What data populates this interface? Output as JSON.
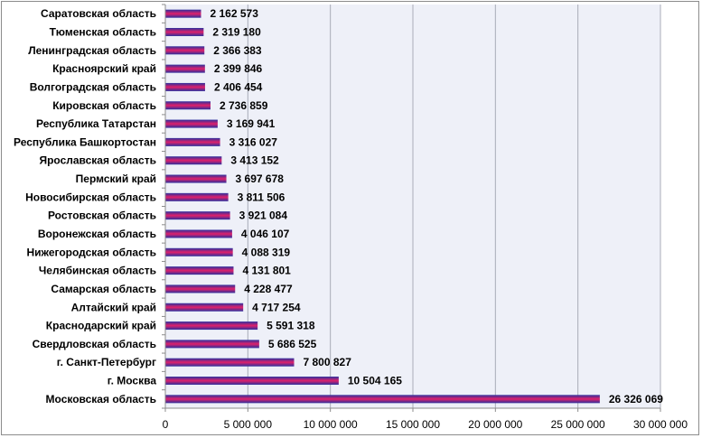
{
  "chart_data": {
    "type": "bar",
    "orientation": "horizontal",
    "categories": [
      "Саратовская область",
      "Тюменская область",
      "Ленинградская область",
      "Красноярский край",
      "Волгоградская область",
      "Кировская область",
      "Республика Татарстан",
      "Республика Башкортостан",
      "Ярославская область",
      "Пермский край",
      "Новосибирская область",
      "Ростовская область",
      "Воронежская область",
      "Нижегородская область",
      "Челябинская область",
      "Самарская область",
      "Алтайский край",
      "Краснодарский край",
      "Свердловская область",
      "г. Санкт-Петербург",
      "г. Москва",
      "Московская область"
    ],
    "values": [
      2162573,
      2319180,
      2366383,
      2399846,
      2406454,
      2736859,
      3169941,
      3316027,
      3413152,
      3697678,
      3811506,
      3921084,
      4046107,
      4088319,
      4131801,
      4228477,
      4717254,
      5591318,
      5686525,
      7800827,
      10504165,
      26326069
    ],
    "value_labels": [
      "2 162 573",
      "2 319 180",
      "2 366 383",
      "2 399 846",
      "2 406 454",
      "2 736 859",
      "3 169 941",
      "3 316 027",
      "3 413 152",
      "3 697 678",
      "3 811 506",
      "3 921 084",
      "4 046 107",
      "4 088 319",
      "4 131 801",
      "4 228 477",
      "4 717 254",
      "5 591 318",
      "5 686 525",
      "7 800 827",
      "10 504 165",
      "26 326 069"
    ],
    "x_ticks": [
      0,
      5000000,
      10000000,
      15000000,
      20000000,
      25000000,
      30000000
    ],
    "x_tick_labels": [
      "0",
      "5 000 000",
      "10 000 000",
      "15 000 000",
      "20 000 000",
      "25 000 000",
      "30 000 000"
    ],
    "xlim": [
      0,
      30000000
    ],
    "grid": true,
    "legend": "none",
    "colors": {
      "bar_top": "#2b2f9e",
      "bar_mid": "#e0206a",
      "bar_bottom": "#2b2f9e",
      "plot_background": "#eef0f8",
      "grid": "#a9acb8",
      "axis": "#8c8c8c"
    }
  }
}
